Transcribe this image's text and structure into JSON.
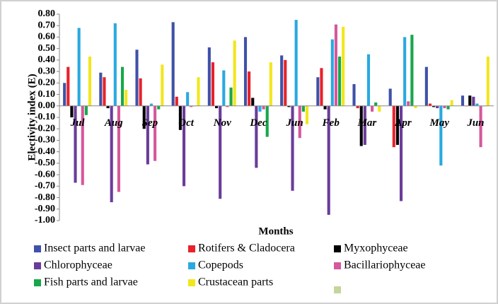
{
  "chart_data": {
    "type": "bar",
    "y_label": "Electivity index (E)",
    "x_label": "Months",
    "categories": [
      "Jul",
      "Aug",
      "Sep",
      "Oct",
      "Nov",
      "Dec",
      "Jun",
      "Feb",
      "Mar",
      "Apr",
      "May",
      "Jun"
    ],
    "series": [
      {
        "name": "Insect parts and larvae",
        "color": "#3f51a8",
        "values": [
          0.2,
          0.29,
          0.49,
          0.73,
          0.51,
          0.6,
          0.44,
          0.25,
          0.19,
          0.15,
          0.34,
          0.09
        ]
      },
      {
        "name": "Rotifers  & Cladocera",
        "color": "#e8212a",
        "values": [
          0.34,
          0.25,
          0.24,
          0.08,
          0.38,
          0.3,
          0.4,
          0.33,
          -0.02,
          -0.36,
          0.02,
          0.0
        ]
      },
      {
        "name": "Myxophyceae",
        "color": "#000000",
        "values": [
          -0.1,
          -0.02,
          -0.2,
          -0.21,
          -0.02,
          0.07,
          -0.01,
          -0.03,
          -0.35,
          -0.34,
          -0.01,
          0.09
        ]
      },
      {
        "name": "Chlorophyceae",
        "color": "#6a3c9a",
        "values": [
          -0.67,
          -0.84,
          -0.51,
          -0.7,
          -0.81,
          -0.54,
          -0.74,
          -0.95,
          -0.34,
          -0.83,
          -0.02,
          0.08
        ]
      },
      {
        "name": "Copepods",
        "color": "#29a9e0",
        "values": [
          0.68,
          0.72,
          0.02,
          0.12,
          0.31,
          -0.05,
          0.75,
          0.58,
          0.45,
          0.6,
          -0.52,
          0.02
        ]
      },
      {
        "name": "Bacillariophyceae",
        "color": "#d6579c",
        "values": [
          -0.69,
          -0.75,
          -0.48,
          -0.01,
          -0.01,
          -0.03,
          -0.28,
          0.71,
          -0.05,
          0.04,
          -0.02,
          -0.36
        ]
      },
      {
        "name": "Fish parts and larvae",
        "color": "#17a74a",
        "values": [
          -0.08,
          0.34,
          -0.03,
          0.0,
          0.16,
          -0.27,
          -0.05,
          0.43,
          0.03,
          0.62,
          -0.03,
          0.0
        ]
      },
      {
        "name": "Crustacean parts",
        "color": "#f2e61c",
        "values": [
          0.43,
          0.14,
          0.36,
          0.25,
          0.57,
          0.38,
          -0.16,
          0.69,
          -0.05,
          -0.02,
          0.05,
          0.43
        ]
      }
    ],
    "ylim": [
      -1.0,
      0.8
    ],
    "yticks": [
      {
        "value": 0.8,
        "label": "0.80"
      },
      {
        "value": 0.7,
        "label": "0.70"
      },
      {
        "value": 0.6,
        "label": "0.60"
      },
      {
        "value": 0.5,
        "label": "0.50"
      },
      {
        "value": 0.4,
        "label": "0.40"
      },
      {
        "value": 0.3,
        "label": "0.30"
      },
      {
        "value": 0.2,
        "label": "0.20"
      },
      {
        "value": 0.1,
        "label": "0.10"
      },
      {
        "value": 0,
        "label": "0.00"
      },
      {
        "value": -0.1,
        "label": "-0.10"
      },
      {
        "value": -0.2,
        "label": "-0.20"
      },
      {
        "value": -0.3,
        "label": "-0.30"
      },
      {
        "value": -0.4,
        "label": "-0.40"
      },
      {
        "value": -0.5,
        "label": "-0.50"
      },
      {
        "value": -0.6,
        "label": "-0.60"
      },
      {
        "value": -0.7,
        "label": "-0.70"
      },
      {
        "value": -0.8,
        "label": "-0.80"
      },
      {
        "value": -0.9,
        "label": "-0.90"
      },
      {
        "value": -1.0,
        "label": "-1.00"
      }
    ]
  }
}
